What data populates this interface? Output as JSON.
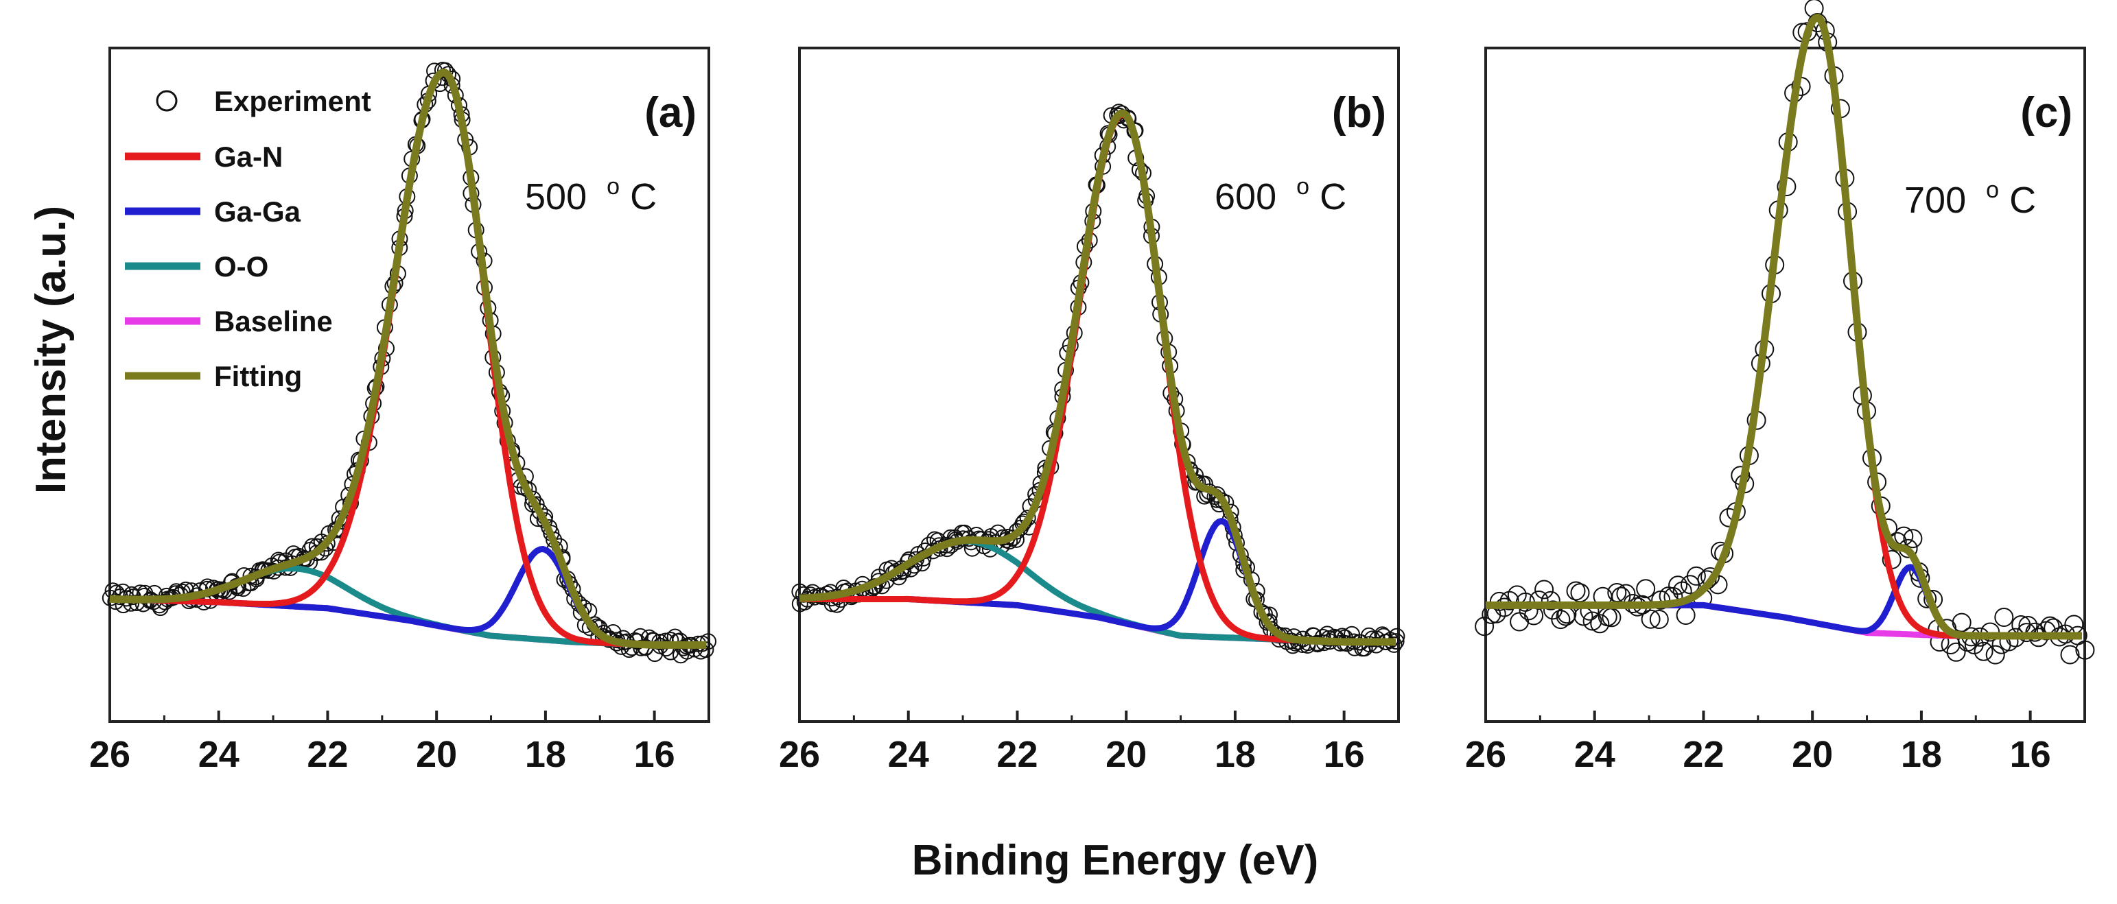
{
  "colors": {
    "experiment": "#111111",
    "ga_n": "#e41a1c",
    "ga_ga": "#1f1fcf",
    "o_o": "#1a8a8a",
    "baseline": "#e83be8",
    "fitting": "#7a7a1e"
  },
  "chart_data": {
    "type": "line",
    "xlabel": "Binding Energy (eV)",
    "ylabel": "Intensity (a.u.)",
    "xlim": [
      26,
      15
    ],
    "x_ticks": [
      26,
      24,
      22,
      20,
      18,
      16
    ],
    "x_tick_labels": [
      "26",
      "24",
      "22",
      "20",
      "18",
      "16"
    ],
    "ylim": [
      0,
      1.1
    ],
    "legend": [
      {
        "key": "experiment",
        "label": "Experiment",
        "marker": "circle"
      },
      {
        "key": "ga_n",
        "label": "Ga-N",
        "marker": "line"
      },
      {
        "key": "ga_ga",
        "label": "Ga-Ga",
        "marker": "line"
      },
      {
        "key": "o_o",
        "label": "O-O",
        "marker": "line"
      },
      {
        "key": "baseline",
        "label": "Baseline",
        "marker": "line"
      },
      {
        "key": "fitting",
        "label": "Fitting",
        "marker": "line"
      }
    ],
    "panels": [
      {
        "id": "a",
        "label": "(a)",
        "temperature": "500",
        "temp_unit_sup": "o",
        "temp_unit": "C",
        "baseline": {
          "x": [
            26,
            24,
            22,
            20.5,
            19,
            17.5,
            16,
            15
          ],
          "y": [
            0.2,
            0.195,
            0.185,
            0.165,
            0.14,
            0.13,
            0.125,
            0.125
          ]
        },
        "ga_n": {
          "center": 19.85,
          "height": 0.905,
          "sigma_left": 0.92,
          "sigma_right": 0.75
        },
        "ga_ga": {
          "center": 18.05,
          "height": 0.148,
          "sigma": 0.48
        },
        "o_o": {
          "center": 22.6,
          "height": 0.062,
          "sigma": 0.95
        },
        "experiment_noise": 0.012
      },
      {
        "id": "b",
        "label": "(b)",
        "temperature": "600",
        "temp_unit_sup": "o",
        "temp_unit": "C",
        "baseline": {
          "x": [
            26,
            24,
            22,
            20.5,
            19,
            17.5,
            16,
            15
          ],
          "y": [
            0.2,
            0.2,
            0.19,
            0.17,
            0.14,
            0.135,
            0.13,
            0.13
          ]
        },
        "ga_n": {
          "center": 20.05,
          "height": 0.83,
          "sigma_left": 0.82,
          "sigma_right": 0.72
        },
        "ga_ga": {
          "center": 18.25,
          "height": 0.19,
          "sigma": 0.42
        },
        "o_o": {
          "center": 22.9,
          "height": 0.1,
          "sigma": 1.05
        },
        "experiment_noise": 0.012
      },
      {
        "id": "c",
        "label": "(c)",
        "temperature": "700",
        "temp_unit_sup": "o",
        "temp_unit": "C",
        "baseline": {
          "x": [
            26,
            24,
            22,
            20.5,
            19,
            17.5,
            16,
            15
          ],
          "y": [
            0.19,
            0.19,
            0.19,
            0.17,
            0.145,
            0.14,
            0.14,
            0.14
          ]
        },
        "ga_n": {
          "center": 19.9,
          "height": 0.99,
          "sigma_left": 0.78,
          "sigma_right": 0.62
        },
        "ga_ga": {
          "center": 18.2,
          "height": 0.11,
          "sigma": 0.3
        },
        "o_o": null,
        "experiment_noise": 0.03
      }
    ]
  }
}
